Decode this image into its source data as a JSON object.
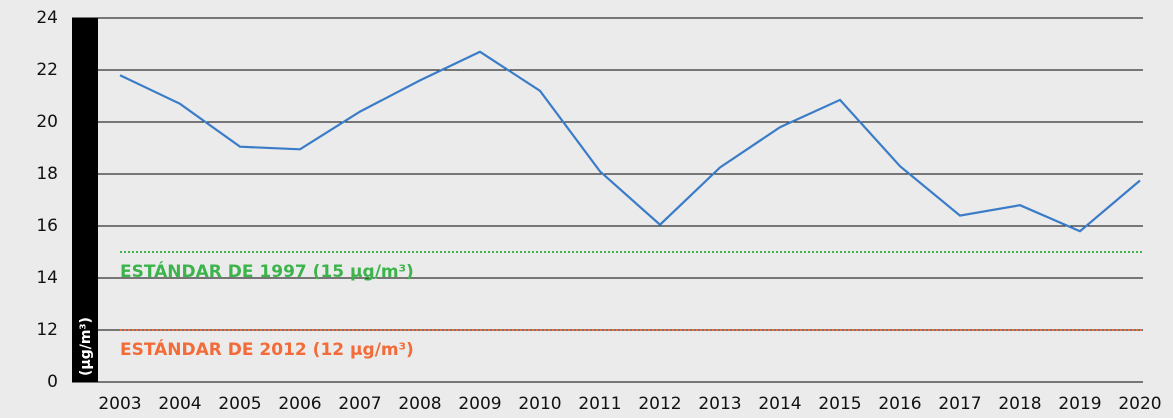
{
  "chart_data": {
    "type": "line",
    "y_axis_label": "(µg/m³)",
    "categories": [
      "2003",
      "2004",
      "2005",
      "2006",
      "2007",
      "2008",
      "2009",
      "2010",
      "2011",
      "2012",
      "2013",
      "2014",
      "2015",
      "2016",
      "2017",
      "2018",
      "2019",
      "2020"
    ],
    "series": [
      {
        "color": "#3b7cc8",
        "values": [
          21.8,
          20.7,
          19.05,
          18.95,
          20.4,
          21.6,
          22.7,
          21.2,
          18.1,
          16.05,
          18.25,
          19.8,
          20.85,
          18.3,
          16.4,
          16.8,
          15.8,
          17.75
        ]
      }
    ],
    "ylim": [
      0,
      24
    ],
    "ybreak": [
      0,
      10
    ],
    "yticks": [
      0,
      12,
      14,
      16,
      18,
      20,
      22,
      24
    ],
    "grid": true,
    "reference_lines": [
      {
        "value": 15,
        "label": "ESTÁNDAR DE 1997 (15 µg/m³)",
        "color": "#3cb44b"
      },
      {
        "value": 12,
        "label": "ESTÁNDAR DE 2012 (12 µg/m³)",
        "color": "#f26b38"
      }
    ]
  }
}
